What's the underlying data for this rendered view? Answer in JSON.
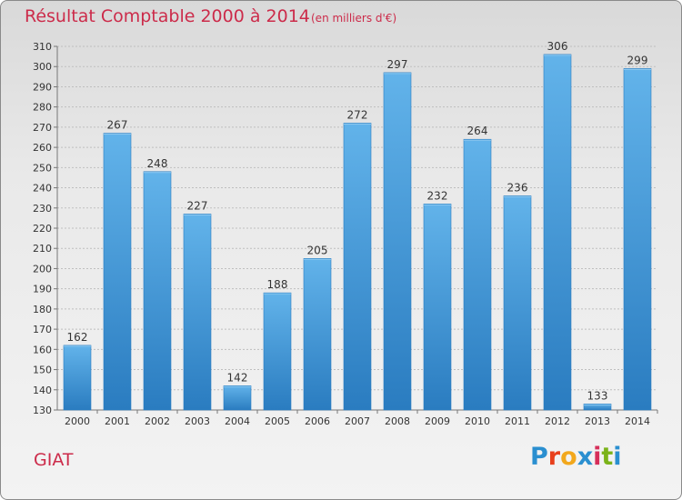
{
  "title": "Résultat Comptable 2000 à 2014",
  "subtitle": "(en milliers d'€)",
  "commune": "GIAT",
  "logo": {
    "text": "Proxiti",
    "letters": [
      {
        "char": "P",
        "color": "#2a8fd0"
      },
      {
        "char": "r",
        "color": "#e8401c"
      },
      {
        "char": "o",
        "color": "#f2a81d"
      },
      {
        "char": "x",
        "color": "#2a8fd0"
      },
      {
        "char": "i",
        "color": "#d62f5a"
      },
      {
        "char": "t",
        "color": "#7bb31a"
      },
      {
        "char": "i",
        "color": "#2a8fd0"
      }
    ]
  },
  "chart_data": {
    "type": "bar",
    "categories": [
      "2000",
      "2001",
      "2002",
      "2003",
      "2004",
      "2005",
      "2006",
      "2007",
      "2008",
      "2009",
      "2010",
      "2011",
      "2012",
      "2013",
      "2014"
    ],
    "values": [
      162,
      267,
      248,
      227,
      142,
      188,
      205,
      272,
      297,
      232,
      264,
      236,
      306,
      133,
      299
    ],
    "ylim": [
      130,
      310
    ],
    "yticks": [
      130,
      140,
      150,
      160,
      170,
      180,
      190,
      200,
      210,
      220,
      230,
      240,
      250,
      260,
      270,
      280,
      290,
      300,
      310
    ],
    "grid": true,
    "bar_color": "#3f98d8",
    "bar_color_dark": "#2a7cc0",
    "bar_color_light": "#62b3ea"
  }
}
